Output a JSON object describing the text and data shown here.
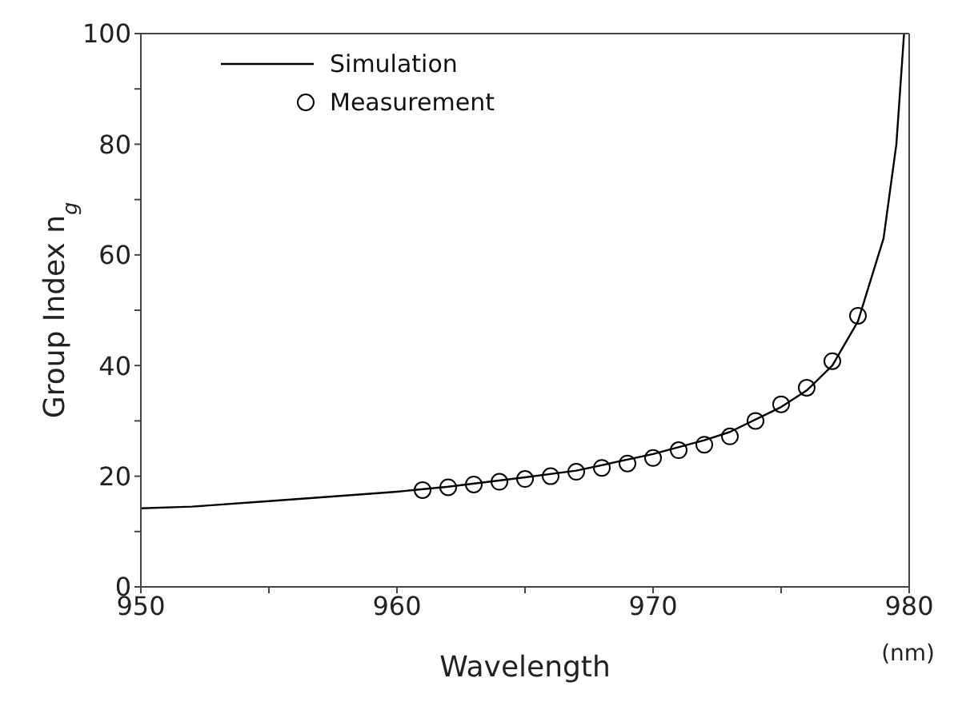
{
  "chart_data": {
    "type": "line",
    "xlabel": "Wavelength",
    "ylabel": "Group Index n$_{g}$",
    "annotations": [
      "(nm)"
    ],
    "xlim": [
      950,
      980
    ],
    "ylim": [
      0,
      100
    ],
    "xticks": [
      950,
      {
        "value": 955,
        "label": null
      },
      960,
      {
        "value": 965,
        "label": null
      },
      970,
      {
        "value": 975,
        "label": null
      },
      980
    ],
    "yticks": [
      0,
      {
        "value": 10,
        "label": null
      },
      20,
      {
        "value": 30,
        "label": null
      },
      40,
      {
        "value": 50,
        "label": null
      },
      60,
      {
        "value": 70,
        "label": null
      },
      80,
      {
        "value": 90,
        "label": null
      },
      100
    ],
    "legend": "top left",
    "series": [
      {
        "name": "Simulation",
        "color": "#000000",
        "marker": "none",
        "x": [
          950,
          952,
          955,
          958,
          960,
          962,
          965,
          967,
          970,
          972,
          973,
          975,
          976,
          977,
          978,
          979,
          979.5,
          979.8
        ],
        "values": [
          14.2,
          14.5,
          15.5,
          16.5,
          17.2,
          18.1,
          19.8,
          21,
          24,
          26.5,
          28,
          32.5,
          35.5,
          40,
          48,
          63,
          80,
          100
        ]
      },
      {
        "name": "Measurement",
        "type": "scatter",
        "color": "#000000",
        "marker": "circle",
        "x": [
          961,
          962,
          963,
          964,
          965,
          966,
          967,
          968,
          969,
          970,
          971,
          972,
          973,
          974,
          975,
          976,
          977,
          978
        ],
        "values": [
          17.5,
          18,
          18.5,
          19,
          19.5,
          20,
          20.8,
          21.5,
          22.3,
          23.3,
          24.7,
          25.7,
          27.2,
          30,
          33,
          36,
          40.8,
          49
        ]
      }
    ]
  }
}
